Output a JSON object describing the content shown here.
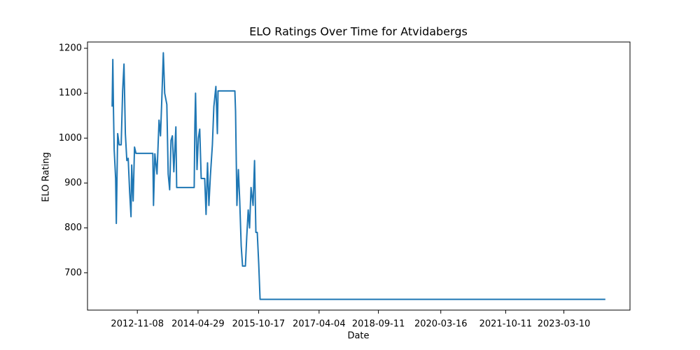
{
  "chart_data": {
    "type": "line",
    "title": "ELO Ratings Over Time for Atvidabergs",
    "x_label": "Date",
    "y_label": "ELO Rating",
    "x": [
      "2012-03-30",
      "2012-04-05",
      "2012-04-11",
      "2012-04-17",
      "2012-04-30",
      "2012-05-06",
      "2012-05-18",
      "2012-05-31",
      "2012-06-18",
      "2012-07-01",
      "2012-07-13",
      "2012-07-25",
      "2012-08-07",
      "2012-08-19",
      "2012-09-01",
      "2012-09-13",
      "2012-09-19",
      "2012-10-02",
      "2012-10-14",
      "2012-10-27",
      "2013-03-25",
      "2013-03-31",
      "2013-04-12",
      "2013-05-01",
      "2013-05-19",
      "2013-06-01",
      "2013-06-13",
      "2013-06-26",
      "2013-07-08",
      "2013-07-27",
      "2013-08-08",
      "2013-08-21",
      "2013-09-02",
      "2013-09-14",
      "2013-09-27",
      "2013-10-15",
      "2013-10-22",
      "2013-11-09",
      "2014-03-26",
      "2014-04-01",
      "2014-04-07",
      "2014-04-20",
      "2014-05-02",
      "2014-05-14",
      "2014-05-27",
      "2014-06-27",
      "2014-07-09",
      "2014-07-22",
      "2014-08-03",
      "2014-08-16",
      "2014-09-03",
      "2014-09-16",
      "2014-10-04",
      "2014-10-17",
      "2014-10-23",
      "2015-03-21",
      "2015-03-27",
      "2015-04-08",
      "2015-04-21",
      "2015-05-03",
      "2015-05-16",
      "2015-05-28",
      "2015-06-22",
      "2015-07-04",
      "2015-07-17",
      "2015-07-29",
      "2015-08-11",
      "2015-08-29",
      "2015-09-11",
      "2015-09-23",
      "2015-10-05",
      "2015-10-18",
      "2015-10-30",
      "2024-03-11"
    ],
    "series": [
      {
        "name": "Atvidabergs",
        "color": "#1f77b4",
        "values": [
          1070,
          1175,
          1060,
          975,
          910,
          810,
          1010,
          985,
          985,
          1105,
          1165,
          1010,
          950,
          955,
          880,
          825,
          940,
          860,
          980,
          966,
          966,
          850,
          965,
          920,
          1040,
          1005,
          1090,
          1190,
          1100,
          1075,
          920,
          885,
          995,
          1005,
          925,
          1025,
          890,
          890,
          890,
          1030,
          1100,
          930,
          1000,
          1020,
          910,
          910,
          830,
          945,
          850,
          915,
          985,
          1070,
          1115,
          1010,
          1105,
          1105,
          1060,
          850,
          930,
          860,
          760,
          715,
          715,
          780,
          840,
          800,
          890,
          850,
          950,
          790,
          790,
          720,
          641,
          641
        ]
      }
    ],
    "xlim": [
      "2011-08-25",
      "2024-10-15"
    ],
    "xticks": [
      "2012-11-08",
      "2014-04-29",
      "2015-10-17",
      "2017-04-04",
      "2018-09-11",
      "2020-03-16",
      "2021-10-11",
      "2023-03-10"
    ],
    "ylim": [
      617,
      1214
    ],
    "yticks": [
      700,
      800,
      900,
      1000,
      1100,
      1200
    ],
    "grid": false
  }
}
